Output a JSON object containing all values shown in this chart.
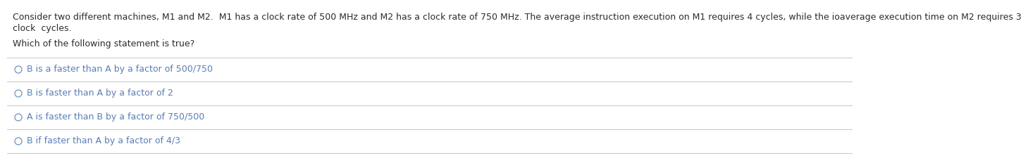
{
  "paragraph_line1": "Consider two different machines, M1 and M2.  M1 has a clock rate of 500 MHz and M2 has a clock rate of 750 MHz. The average instruction execution on M1 requires 4 cycles, while the ioaverage execution time on M2 requires 3",
  "paragraph_line2": "clock  cycles.",
  "question": "Which of the following statement is true?",
  "options": [
    "B is a faster than A by a factor of 500/750",
    "B is faster than A by a factor of 2",
    "A is faster than B by a factor of 750/500",
    "B if faster than A by a factor of 4/3"
  ],
  "bg_color": "#ffffff",
  "text_color": "#2c2c2c",
  "option_color": "#5a7db5",
  "question_color": "#2c2c2c",
  "separator_color": "#cccccc",
  "font_size_para": 9.0,
  "font_size_question": 9.0,
  "font_size_option": 9.0,
  "radio_color": "#7a9cc5"
}
